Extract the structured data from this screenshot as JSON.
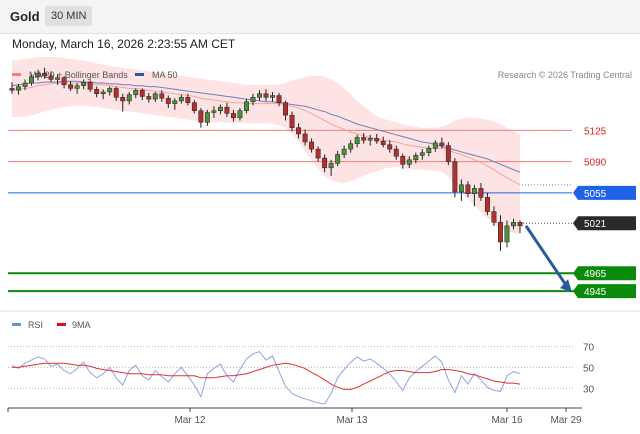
{
  "header": {
    "symbol": "Gold",
    "interval": "30 MIN"
  },
  "timestamp": "Monday, March 16, 2026 2:23:55 AM CET",
  "legend": {
    "ma20": {
      "label": "MA 20 + Bollinger Bands",
      "color": "#f08080"
    },
    "ma50": {
      "label": "MA 50",
      "color": "#2b5a9b"
    }
  },
  "copyright": "Research © 2026 Trading Central",
  "rsi_legend": {
    "rsi": {
      "label": "RSI",
      "color": "#6a8fd8"
    },
    "ma9": {
      "label": "9MA",
      "color": "#dd1111"
    }
  },
  "chart_data": [
    {
      "type": "candlestick",
      "title": "",
      "ylim": [
        4935,
        5215
      ],
      "x_ticks": [
        "Mar 12",
        "Mar 13",
        "Mar 16",
        "Mar 29"
      ],
      "grid": false,
      "ohlc": [
        [
          5172,
          5179,
          5166,
          5170
        ],
        [
          5170,
          5177,
          5165,
          5174
        ],
        [
          5174,
          5182,
          5170,
          5178
        ],
        [
          5178,
          5188,
          5175,
          5185
        ],
        [
          5185,
          5193,
          5181,
          5189
        ],
        [
          5189,
          5195,
          5183,
          5186
        ],
        [
          5186,
          5191,
          5179,
          5182
        ],
        [
          5182,
          5188,
          5176,
          5184
        ],
        [
          5184,
          5186,
          5172,
          5176
        ],
        [
          5176,
          5180,
          5169,
          5172
        ],
        [
          5172,
          5178,
          5166,
          5175
        ],
        [
          5175,
          5182,
          5171,
          5179
        ],
        [
          5179,
          5181,
          5168,
          5171
        ],
        [
          5171,
          5174,
          5162,
          5166
        ],
        [
          5166,
          5171,
          5160,
          5168
        ],
        [
          5168,
          5174,
          5164,
          5172
        ],
        [
          5172,
          5174,
          5158,
          5162
        ],
        [
          5162,
          5166,
          5146,
          5158
        ],
        [
          5158,
          5168,
          5154,
          5165
        ],
        [
          5165,
          5172,
          5161,
          5170
        ],
        [
          5170,
          5172,
          5159,
          5163
        ],
        [
          5163,
          5167,
          5156,
          5160
        ],
        [
          5160,
          5168,
          5157,
          5166
        ],
        [
          5166,
          5170,
          5157,
          5161
        ],
        [
          5161,
          5164,
          5150,
          5155
        ],
        [
          5155,
          5161,
          5148,
          5158
        ],
        [
          5158,
          5165,
          5155,
          5162
        ],
        [
          5162,
          5166,
          5153,
          5156
        ],
        [
          5156,
          5159,
          5144,
          5147
        ],
        [
          5147,
          5150,
          5128,
          5134
        ],
        [
          5134,
          5148,
          5130,
          5145
        ],
        [
          5145,
          5152,
          5139,
          5147
        ],
        [
          5147,
          5154,
          5143,
          5151
        ],
        [
          5151,
          5156,
          5140,
          5144
        ],
        [
          5144,
          5148,
          5135,
          5139
        ],
        [
          5139,
          5150,
          5136,
          5147
        ],
        [
          5147,
          5160,
          5144,
          5157
        ],
        [
          5157,
          5166,
          5153,
          5162
        ],
        [
          5162,
          5170,
          5158,
          5166
        ],
        [
          5166,
          5171,
          5158,
          5162
        ],
        [
          5162,
          5168,
          5157,
          5164
        ],
        [
          5164,
          5167,
          5152,
          5156
        ],
        [
          5156,
          5158,
          5136,
          5142
        ],
        [
          5142,
          5146,
          5124,
          5128
        ],
        [
          5128,
          5133,
          5116,
          5121
        ],
        [
          5121,
          5126,
          5108,
          5112
        ],
        [
          5112,
          5116,
          5100,
          5104
        ],
        [
          5104,
          5107,
          5090,
          5094
        ],
        [
          5094,
          5098,
          5078,
          5083
        ],
        [
          5083,
          5092,
          5074,
          5088
        ],
        [
          5088,
          5102,
          5085,
          5098
        ],
        [
          5098,
          5108,
          5094,
          5104
        ],
        [
          5104,
          5114,
          5100,
          5110
        ],
        [
          5110,
          5120,
          5106,
          5117
        ],
        [
          5117,
          5122,
          5110,
          5114
        ],
        [
          5114,
          5120,
          5108,
          5116
        ],
        [
          5116,
          5121,
          5110,
          5113
        ],
        [
          5113,
          5118,
          5106,
          5109
        ],
        [
          5109,
          5114,
          5100,
          5104
        ],
        [
          5104,
          5108,
          5092,
          5096
        ],
        [
          5096,
          5099,
          5082,
          5087
        ],
        [
          5087,
          5096,
          5083,
          5092
        ],
        [
          5092,
          5100,
          5088,
          5097
        ],
        [
          5097,
          5104,
          5092,
          5100
        ],
        [
          5100,
          5108,
          5096,
          5105
        ],
        [
          5105,
          5114,
          5101,
          5111
        ],
        [
          5111,
          5117,
          5105,
          5108
        ],
        [
          5108,
          5112,
          5086,
          5090
        ],
        [
          5090,
          5094,
          5050,
          5056
        ],
        [
          5056,
          5070,
          5046,
          5064
        ],
        [
          5064,
          5068,
          5050,
          5054
        ],
        [
          5054,
          5064,
          5040,
          5060
        ],
        [
          5060,
          5066,
          5046,
          5050
        ],
        [
          5050,
          5055,
          5030,
          5034
        ],
        [
          5034,
          5040,
          5018,
          5022
        ],
        [
          5022,
          5030,
          4990,
          5000
        ],
        [
          5000,
          5024,
          4994,
          5018
        ],
        [
          5018,
          5026,
          5014,
          5022
        ],
        [
          5022,
          5024,
          5010,
          5018
        ]
      ],
      "ma20": [
        5170,
        5171,
        5172,
        5173,
        5175,
        5176,
        5177,
        5178,
        5178,
        5178,
        5178,
        5178,
        5177,
        5176,
        5176,
        5175,
        5174,
        5173,
        5172,
        5172,
        5171,
        5170,
        5169,
        5168,
        5167,
        5166,
        5165,
        5164,
        5163,
        5161,
        5160,
        5159,
        5158,
        5157,
        5156,
        5156,
        5155,
        5155,
        5155,
        5155,
        5155,
        5155,
        5154,
        5152,
        5150,
        5147,
        5144,
        5140,
        5136,
        5132,
        5129,
        5126,
        5123,
        5121,
        5119,
        5117,
        5116,
        5114,
        5113,
        5112,
        5110,
        5108,
        5107,
        5106,
        5105,
        5105,
        5105,
        5103,
        5100,
        5098,
        5095,
        5092,
        5089,
        5085,
        5081,
        5076,
        5072,
        5068,
        5064
      ],
      "bb_upper": [
        5203,
        5204,
        5205,
        5206,
        5207,
        5207,
        5207,
        5207,
        5206,
        5205,
        5204,
        5203,
        5202,
        5200,
        5199,
        5197,
        5196,
        5195,
        5194,
        5193,
        5192,
        5191,
        5190,
        5189,
        5188,
        5187,
        5186,
        5185,
        5184,
        5183,
        5182,
        5181,
        5180,
        5179,
        5178,
        5177,
        5176,
        5176,
        5176,
        5176,
        5176,
        5176,
        5178,
        5181,
        5183,
        5185,
        5186,
        5186,
        5185,
        5182,
        5178,
        5172,
        5165,
        5158,
        5152,
        5146,
        5141,
        5138,
        5136,
        5134,
        5132,
        5130,
        5129,
        5128,
        5128,
        5128,
        5129,
        5132,
        5136,
        5138,
        5139,
        5139,
        5138,
        5137,
        5135,
        5132,
        5128,
        5124,
        5120
      ],
      "bb_lower": [
        5140,
        5140,
        5141,
        5142,
        5144,
        5146,
        5148,
        5150,
        5151,
        5152,
        5153,
        5153,
        5152,
        5151,
        5150,
        5149,
        5148,
        5147,
        5146,
        5145,
        5144,
        5143,
        5142,
        5141,
        5140,
        5139,
        5138,
        5137,
        5136,
        5135,
        5134,
        5134,
        5134,
        5134,
        5133,
        5133,
        5133,
        5133,
        5133,
        5133,
        5132,
        5131,
        5128,
        5121,
        5112,
        5102,
        5092,
        5082,
        5074,
        5069,
        5067,
        5066,
        5068,
        5071,
        5074,
        5077,
        5079,
        5082,
        5083,
        5084,
        5083,
        5082,
        5081,
        5081,
        5080,
        5080,
        5079,
        5073,
        5064,
        5056,
        5048,
        5041,
        5034,
        5027,
        5020,
        5015,
        5012,
        5010,
        5008
      ],
      "ma50": [
        5175,
        5176,
        5177,
        5178,
        5178,
        5179,
        5179,
        5179,
        5180,
        5180,
        5180,
        5179,
        5179,
        5178,
        5178,
        5177,
        5177,
        5176,
        5176,
        5175,
        5175,
        5174,
        5174,
        5173,
        5172,
        5171,
        5170,
        5169,
        5168,
        5167,
        5166,
        5165,
        5164,
        5163,
        5162,
        5161,
        5160,
        5159,
        5158,
        5157,
        5157,
        5156,
        5155,
        5154,
        5153,
        5152,
        5150,
        5148,
        5146,
        5143,
        5141,
        5138,
        5135,
        5132,
        5130,
        5128,
        5126,
        5124,
        5122,
        5120,
        5118,
        5116,
        5114,
        5112,
        5111,
        5109,
        5107,
        5105,
        5103,
        5101,
        5099,
        5097,
        5095,
        5093,
        5090,
        5087,
        5084,
        5081,
        5078
      ],
      "levels": [
        {
          "label": "5125",
          "value": 5125,
          "kind": "resistance",
          "color": "#f08080"
        },
        {
          "label": "5090",
          "value": 5090,
          "kind": "resistance",
          "color": "#f08080"
        },
        {
          "label": "5055",
          "value": 5055,
          "kind": "pivot",
          "color": "#1f62e8"
        },
        {
          "label": "4965",
          "value": 4965,
          "kind": "support",
          "color": "#0a8a0a"
        },
        {
          "label": "4945",
          "value": 4945,
          "kind": "support",
          "color": "#0a8a0a"
        }
      ],
      "last_price": {
        "label": "5021",
        "value": 5021
      },
      "projection": {
        "from": 5018,
        "to": 4945
      }
    },
    {
      "type": "line",
      "title": "",
      "ylim": [
        15,
        80
      ],
      "y_ticks": [
        "70",
        "50",
        "30"
      ],
      "grid": false,
      "series": [
        {
          "name": "RSI",
          "values": [
            52,
            49,
            54,
            57,
            60,
            58,
            51,
            53,
            47,
            44,
            49,
            55,
            45,
            40,
            44,
            50,
            40,
            33,
            47,
            52,
            42,
            38,
            47,
            41,
            36,
            44,
            50,
            42,
            33,
            22,
            44,
            49,
            53,
            42,
            36,
            48,
            58,
            63,
            65,
            57,
            61,
            46,
            32,
            25,
            22,
            20,
            18,
            16,
            15,
            25,
            40,
            48,
            55,
            60,
            56,
            58,
            54,
            49,
            44,
            36,
            28,
            40,
            46,
            51,
            56,
            61,
            55,
            38,
            26,
            42,
            34,
            44,
            38,
            31,
            28,
            27,
            42,
            46,
            44
          ]
        },
        {
          "name": "9MA",
          "values": [
            50,
            50,
            51,
            52,
            53,
            54,
            54,
            54,
            54,
            53,
            52,
            52,
            51,
            49,
            48,
            47,
            46,
            45,
            44,
            44,
            44,
            43,
            43,
            43,
            42,
            42,
            42,
            42,
            42,
            40,
            40,
            40,
            41,
            42,
            42,
            43,
            44,
            46,
            48,
            50,
            52,
            53,
            54,
            53,
            51,
            49,
            45,
            42,
            38,
            34,
            31,
            29,
            29,
            31,
            34,
            37,
            40,
            43,
            46,
            47,
            47,
            46,
            45,
            45,
            45,
            46,
            48,
            48,
            47,
            46,
            44,
            43,
            41,
            39,
            37,
            36,
            35,
            35,
            34
          ]
        }
      ],
      "reference_lines": [
        70,
        50,
        30
      ]
    }
  ]
}
